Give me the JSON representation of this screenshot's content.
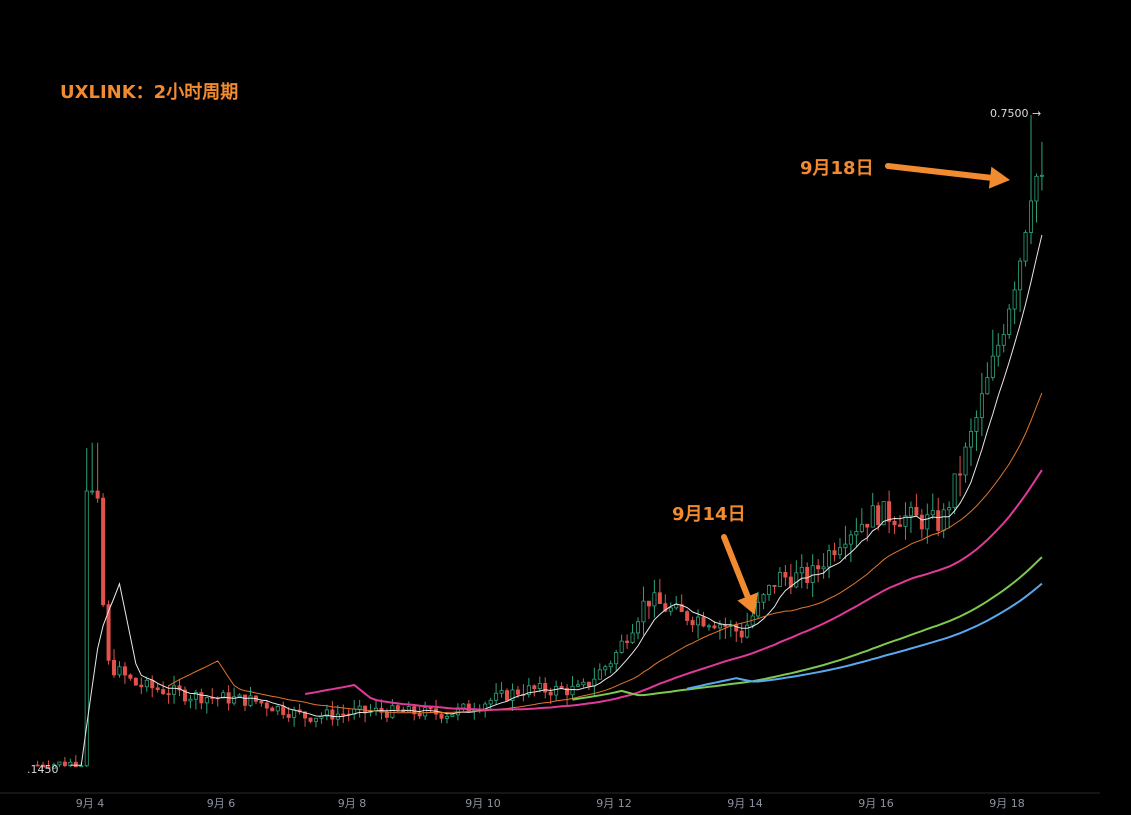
{
  "title": "UXLINK：2小时周期",
  "annotations": [
    {
      "label": "9月14日",
      "date": "9月14"
    },
    {
      "label": "9月18日",
      "date": "9月18"
    }
  ],
  "price_labels": {
    "high": "0.7500 →",
    "low": ".1450"
  },
  "colors": {
    "up": "#2fa37d",
    "down": "#e0524b",
    "accent": "#f28a30",
    "ma_white": "#e8e8e8",
    "ma_orange": "#e2762b",
    "ma_pink": "#e0399a",
    "ma_green": "#7ec850",
    "ma_blue": "#5aa8f0"
  },
  "chart_data": {
    "type": "candlestick",
    "x_ticks": [
      "9月 4",
      "9月 6",
      "9月 8",
      "9月 10",
      "9月 12",
      "9月 14",
      "9月 16",
      "9月 18"
    ],
    "x_tick_days": [
      4,
      6,
      8,
      10,
      12,
      14,
      16,
      18
    ],
    "x_range_days": [
      3.15,
      18.75
    ],
    "ylim": [
      0.14,
      0.77
    ],
    "key_points": [
      {
        "day": 3.2,
        "price": 0.145
      },
      {
        "day": 3.95,
        "price": 0.148
      },
      {
        "day": 4.0,
        "price": 0.42
      },
      {
        "day": 4.1,
        "price": 0.4
      },
      {
        "day": 4.25,
        "price": 0.24
      },
      {
        "day": 4.7,
        "price": 0.22
      },
      {
        "day": 5.5,
        "price": 0.21
      },
      {
        "day": 6.5,
        "price": 0.205
      },
      {
        "day": 7.3,
        "price": 0.19
      },
      {
        "day": 8.3,
        "price": 0.195
      },
      {
        "day": 9.5,
        "price": 0.193
      },
      {
        "day": 10.6,
        "price": 0.215
      },
      {
        "day": 11.5,
        "price": 0.215
      },
      {
        "day": 12.0,
        "price": 0.245
      },
      {
        "day": 12.5,
        "price": 0.3
      },
      {
        "day": 13.0,
        "price": 0.285
      },
      {
        "day": 13.5,
        "price": 0.28
      },
      {
        "day": 13.95,
        "price": 0.268
      },
      {
        "day": 14.5,
        "price": 0.32
      },
      {
        "day": 15.0,
        "price": 0.32
      },
      {
        "day": 15.5,
        "price": 0.36
      },
      {
        "day": 16.0,
        "price": 0.38
      },
      {
        "day": 16.5,
        "price": 0.375
      },
      {
        "day": 17.0,
        "price": 0.37
      },
      {
        "day": 17.4,
        "price": 0.44
      },
      {
        "day": 17.8,
        "price": 0.52
      },
      {
        "day": 18.2,
        "price": 0.62
      },
      {
        "day": 18.4,
        "price": 0.7
      },
      {
        "day": 18.6,
        "price": 0.67
      }
    ]
  }
}
